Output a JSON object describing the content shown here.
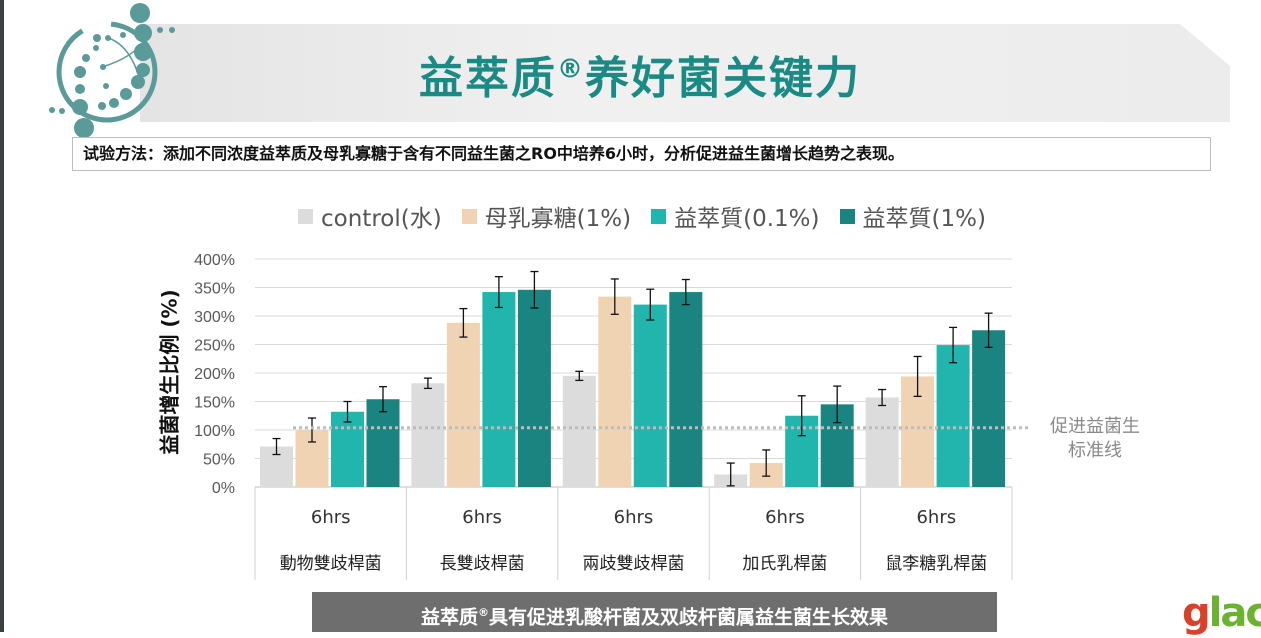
{
  "header": {
    "title_pre": "益萃质",
    "title_reg": "®",
    "title_post": "养好菌关键力"
  },
  "method": "试验方法：添加不同浓度益萃质及母乳寡糖于含有不同益生菌之RO中培养6小时，分析促进益生菌增长趋势之表现。",
  "footer": {
    "pre": "益萃质",
    "reg": "®",
    "post": "具有促进乳酸杆菌及双歧杆菌属益生菌生长效果"
  },
  "logo_text": "glac",
  "reference_note": [
    "促进益菌生",
    "标准线"
  ],
  "chart_data": {
    "type": "bar",
    "ylabel": "益菌增生比例 (%)",
    "ylim": [
      0,
      400
    ],
    "yticks": [
      "0%",
      "50%",
      "100%",
      "150%",
      "200%",
      "250%",
      "300%",
      "350%",
      "400%"
    ],
    "grid": true,
    "legend_position": "top",
    "categories": [
      "動物雙歧桿菌",
      "長雙歧桿菌",
      "兩歧雙歧桿菌",
      "加氏乳桿菌",
      "鼠李糖乳桿菌"
    ],
    "sub_categories": [
      "6hrs",
      "6hrs",
      "6hrs",
      "6hrs",
      "6hrs"
    ],
    "reference_line": 104,
    "series": [
      {
        "name": "control(水)",
        "color": "#dcdcdc",
        "values": [
          71,
          182,
          195,
          22,
          157
        ],
        "errors": [
          14,
          9,
          8,
          20,
          14
        ]
      },
      {
        "name": "母乳寡糖(1%)",
        "color": "#f0d3b2",
        "values": [
          100,
          288,
          334,
          42,
          194
        ],
        "errors": [
          21,
          25,
          31,
          23,
          35
        ]
      },
      {
        "name": "益萃質(0.1%)",
        "color": "#21b5ad",
        "values": [
          132,
          342,
          320,
          125,
          249
        ],
        "errors": [
          18,
          27,
          27,
          35,
          31
        ]
      },
      {
        "name": "益萃質(1%)",
        "color": "#1a8580",
        "values": [
          154,
          346,
          342,
          145,
          275
        ],
        "errors": [
          22,
          32,
          22,
          32,
          30
        ]
      }
    ]
  }
}
